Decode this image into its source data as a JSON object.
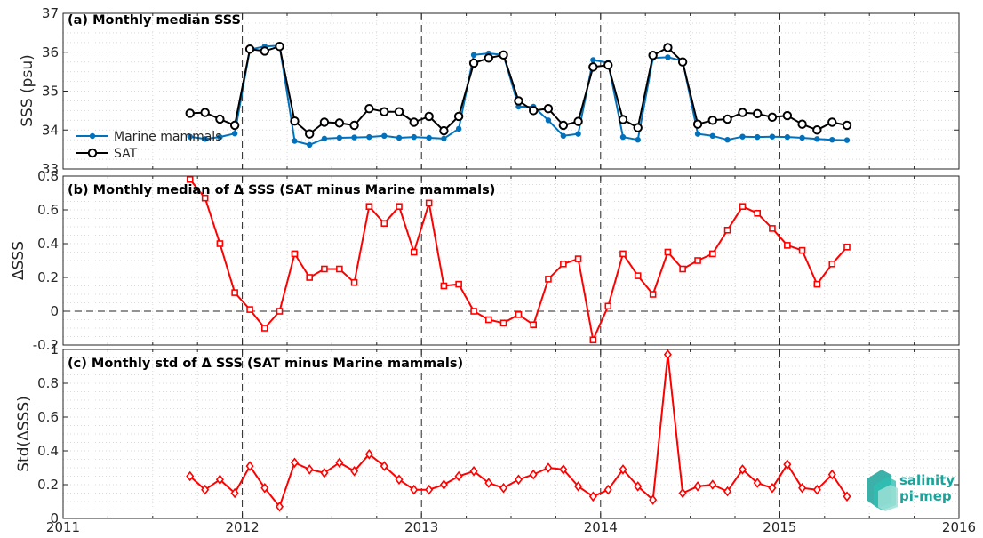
{
  "x_axis": {
    "tick_labels": [
      "2011",
      "2012",
      "2013",
      "2014",
      "2015",
      "2016"
    ],
    "range": [
      2011,
      2016
    ],
    "dashed_year_lines": [
      2012,
      2013,
      2014,
      2015
    ]
  },
  "logo": {
    "line1": "salinity",
    "line2": "pi-mep",
    "color": "#1aa39a"
  },
  "colors": {
    "marine_mammals": "#0072bd",
    "sat": "#000000",
    "delta": "#ff0000"
  },
  "chart_data": [
    {
      "type": "line",
      "title": "(a) Monthly median SSS",
      "ylabel": "SSS (psu)",
      "ylim": [
        33,
        37
      ],
      "yticks": [
        "33",
        "34",
        "35",
        "36",
        "37"
      ],
      "grid": "dotted minor",
      "legend_position": "left",
      "x": [
        2011.708,
        2011.792,
        2011.875,
        2011.958,
        2012.042,
        2012.125,
        2012.208,
        2012.292,
        2012.375,
        2012.458,
        2012.542,
        2012.625,
        2012.708,
        2012.792,
        2012.875,
        2012.958,
        2013.042,
        2013.125,
        2013.208,
        2013.292,
        2013.375,
        2013.458,
        2013.542,
        2013.625,
        2013.708,
        2013.792,
        2013.875,
        2013.958,
        2014.042,
        2014.125,
        2014.208,
        2014.292,
        2014.375,
        2014.458,
        2014.542,
        2014.625,
        2014.708,
        2014.792,
        2014.875,
        2014.958,
        2015.042,
        2015.125,
        2015.208,
        2015.292,
        2015.375
      ],
      "series": [
        {
          "name": "Marine mammals",
          "marker": "dot",
          "values": [
            33.83,
            33.77,
            33.82,
            33.91,
            36.07,
            36.15,
            36.17,
            33.72,
            33.62,
            33.78,
            33.8,
            33.81,
            33.82,
            33.85,
            33.8,
            33.82,
            33.8,
            33.78,
            34.03,
            35.93,
            35.97,
            35.93,
            34.6,
            34.6,
            34.25,
            33.85,
            33.9,
            35.8,
            35.73,
            33.82,
            33.75,
            35.85,
            35.87,
            35.78,
            33.9,
            33.85,
            33.75,
            33.83,
            33.82,
            33.83,
            33.82,
            33.8,
            33.77,
            33.75,
            33.74
          ]
        },
        {
          "name": "SAT",
          "marker": "circle",
          "values": [
            34.43,
            34.45,
            34.28,
            34.12,
            36.08,
            36.03,
            36.15,
            34.23,
            33.9,
            34.2,
            34.18,
            34.12,
            34.55,
            34.47,
            34.47,
            34.2,
            34.35,
            33.98,
            34.35,
            35.72,
            35.85,
            35.93,
            34.75,
            34.5,
            34.55,
            34.12,
            34.22,
            35.62,
            35.67,
            34.27,
            34.06,
            35.92,
            36.12,
            35.75,
            34.15,
            34.25,
            34.28,
            34.45,
            34.42,
            34.33,
            34.37,
            34.15,
            34.0,
            34.2,
            34.12
          ]
        }
      ]
    },
    {
      "type": "line",
      "title": "(b) Monthly median of Δ SSS (SAT minus Marine mammals)",
      "ylabel": "ΔSSS",
      "ylim": [
        -0.2,
        0.8
      ],
      "yticks": [
        "-0.2",
        "0",
        "0.2",
        "0.4",
        "0.6",
        "0.8"
      ],
      "grid": "dotted minor",
      "zero_line": "dashed",
      "x": [
        2011.708,
        2011.792,
        2011.875,
        2011.958,
        2012.042,
        2012.125,
        2012.208,
        2012.292,
        2012.375,
        2012.458,
        2012.542,
        2012.625,
        2012.708,
        2012.792,
        2012.875,
        2012.958,
        2013.042,
        2013.125,
        2013.208,
        2013.292,
        2013.375,
        2013.458,
        2013.542,
        2013.625,
        2013.708,
        2013.792,
        2013.875,
        2013.958,
        2014.042,
        2014.125,
        2014.208,
        2014.292,
        2014.375,
        2014.458,
        2014.542,
        2014.625,
        2014.708,
        2014.792,
        2014.875,
        2014.958,
        2015.042,
        2015.125,
        2015.208,
        2015.292,
        2015.375
      ],
      "series": [
        {
          "marker": "square",
          "values": [
            0.78,
            0.67,
            0.4,
            0.11,
            0.01,
            -0.1,
            0.0,
            0.34,
            0.2,
            0.25,
            0.25,
            0.17,
            0.62,
            0.52,
            0.62,
            0.35,
            0.64,
            0.15,
            0.16,
            0.0,
            -0.05,
            -0.07,
            -0.02,
            -0.08,
            0.19,
            0.28,
            0.31,
            -0.17,
            0.03,
            0.34,
            0.21,
            0.1,
            0.35,
            0.25,
            0.3,
            0.34,
            0.48,
            0.62,
            0.58,
            0.49,
            0.39,
            0.36,
            0.16,
            0.28,
            0.38
          ]
        }
      ]
    },
    {
      "type": "line",
      "title": "(c) Monthly std of Δ SSS (SAT minus Marine mammals)",
      "ylabel": "Std(ΔSSS)",
      "ylim": [
        0,
        1
      ],
      "yticks": [
        "0",
        "0.2",
        "0.4",
        "0.6",
        "0.8",
        "1"
      ],
      "grid": "dotted minor",
      "x": [
        2011.708,
        2011.792,
        2011.875,
        2011.958,
        2012.042,
        2012.125,
        2012.208,
        2012.292,
        2012.375,
        2012.458,
        2012.542,
        2012.625,
        2012.708,
        2012.792,
        2012.875,
        2012.958,
        2013.042,
        2013.125,
        2013.208,
        2013.292,
        2013.375,
        2013.458,
        2013.542,
        2013.625,
        2013.708,
        2013.792,
        2013.875,
        2013.958,
        2014.042,
        2014.125,
        2014.208,
        2014.292,
        2014.375,
        2014.458,
        2014.542,
        2014.625,
        2014.708,
        2014.792,
        2014.875,
        2014.958,
        2015.042,
        2015.125,
        2015.208,
        2015.292,
        2015.375
      ],
      "series": [
        {
          "marker": "diamond",
          "values": [
            0.25,
            0.17,
            0.23,
            0.15,
            0.31,
            0.18,
            0.07,
            0.33,
            0.29,
            0.27,
            0.33,
            0.28,
            0.38,
            0.31,
            0.23,
            0.17,
            0.17,
            0.2,
            0.25,
            0.28,
            0.21,
            0.18,
            0.23,
            0.26,
            0.3,
            0.29,
            0.19,
            0.13,
            0.17,
            0.29,
            0.19,
            0.11,
            0.97,
            0.15,
            0.19,
            0.2,
            0.16,
            0.29,
            0.21,
            0.18,
            0.32,
            0.18,
            0.17,
            0.26,
            0.13
          ]
        }
      ]
    }
  ]
}
